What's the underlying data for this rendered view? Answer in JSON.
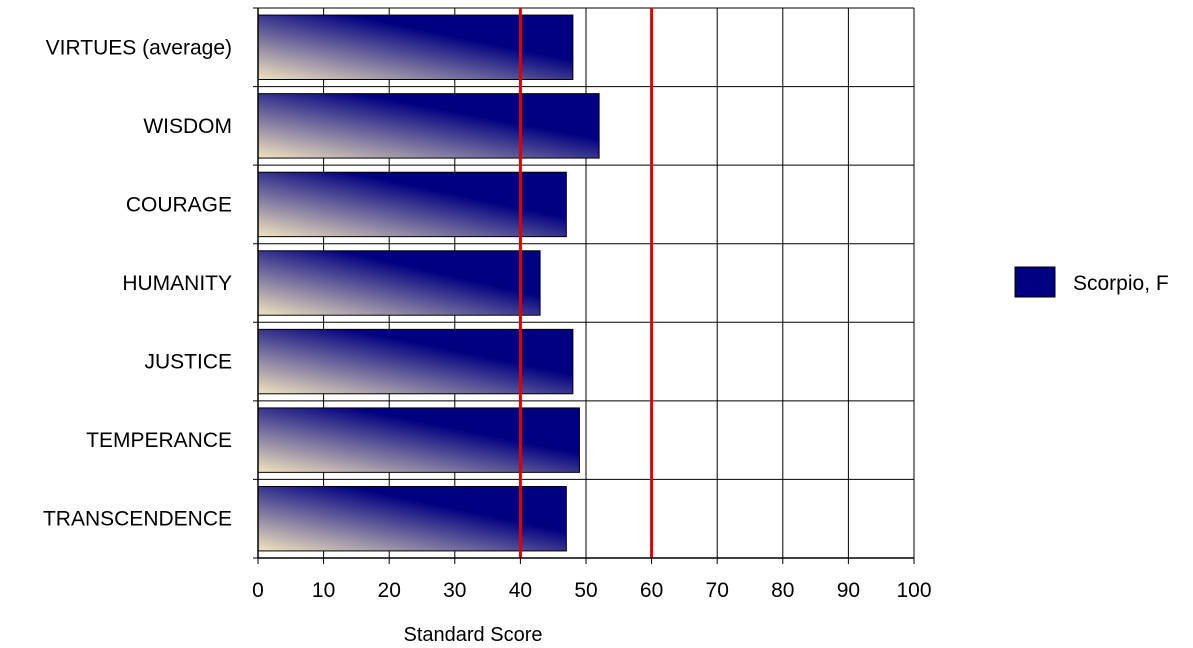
{
  "chart_data": {
    "type": "bar",
    "orientation": "horizontal",
    "categories": [
      "VIRTUES (average)",
      "WISDOM",
      "COURAGE",
      "HUMANITY",
      "JUSTICE",
      "TEMPERANCE",
      "TRANSCENDENCE"
    ],
    "series": [
      {
        "name": "Scorpio, F",
        "values": [
          48,
          52,
          47,
          43,
          48,
          49,
          47
        ]
      }
    ],
    "xlabel": "Standard Score",
    "ylabel": "",
    "xlim": [
      0,
      100
    ],
    "xticks": [
      0,
      10,
      20,
      30,
      40,
      50,
      60,
      70,
      80,
      90,
      100
    ],
    "reference_lines": [
      40,
      60
    ],
    "grid": true,
    "legend_position": "right",
    "colors": {
      "bar_dark": "#000080",
      "bar_light": "#F2E4BE",
      "reference_line": "#E00000",
      "grid": "#000000"
    }
  }
}
